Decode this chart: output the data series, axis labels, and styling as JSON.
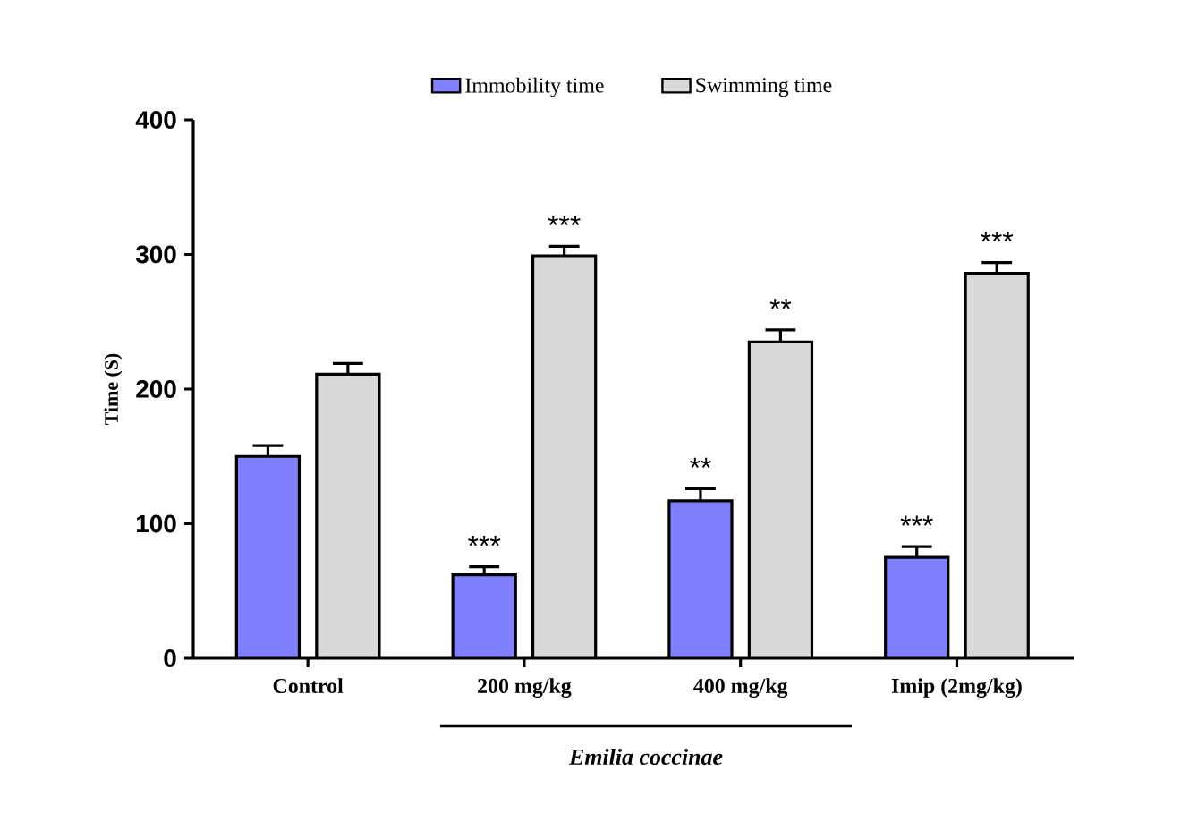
{
  "chart_data": {
    "type": "bar",
    "ylabel": "Time (S)",
    "categories": [
      "Control",
      "200 mg/kg",
      "400 mg/kg",
      "Imip (2mg/kg)"
    ],
    "series": [
      {
        "name": "Immobility time",
        "color": "#8080ff",
        "values": [
          150,
          62,
          117,
          75
        ],
        "errors": [
          8,
          6,
          9,
          8
        ]
      },
      {
        "name": "Swimming time",
        "color": "#d9d9d9",
        "values": [
          211,
          299,
          235,
          286
        ],
        "errors": [
          8,
          7,
          9,
          8
        ]
      }
    ],
    "ylim": [
      0,
      400
    ],
    "yticks": [
      0,
      100,
      200,
      300,
      400
    ],
    "grid": false,
    "legend": "top",
    "annotations": [
      {
        "text": "***",
        "x": "200 mg/kg",
        "y": 62
      },
      {
        "text": "***",
        "x": "200 mg/kg",
        "y": 299
      },
      {
        "text": "**",
        "x": "400 mg/kg",
        "y": 117
      },
      {
        "text": "**",
        "x": "400 mg/kg",
        "y": 235
      },
      {
        "text": "***",
        "x": "Imip (2mg/kg)",
        "y": 75
      },
      {
        "text": "***",
        "x": "Imip (2mg/kg)",
        "y": 286
      },
      "Emilia coccinae"
    ]
  }
}
